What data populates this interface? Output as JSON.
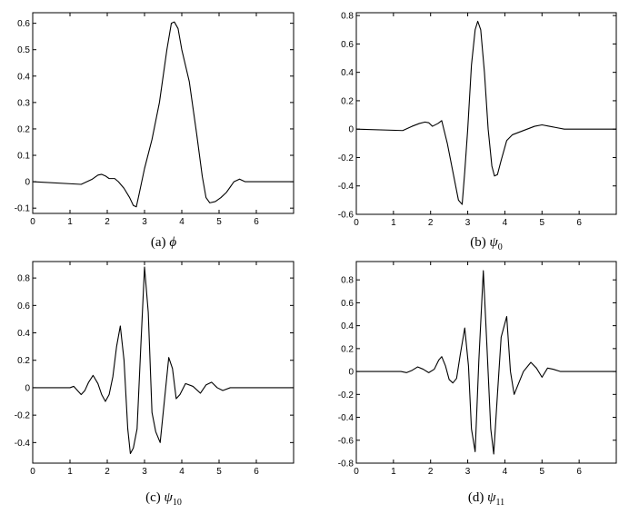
{
  "chart_data": [
    {
      "type": "line",
      "caption_prefix": "(a)",
      "caption_symbol": "ϕ",
      "caption_sub": "",
      "xlim": [
        0,
        7
      ],
      "ylim": [
        -0.12,
        0.64
      ],
      "xticks": [
        "0",
        "1",
        "2",
        "3",
        "4",
        "5",
        "6"
      ],
      "yticks": [
        "-0.1",
        "0",
        "0.1",
        "0.2",
        "0.3",
        "0.4",
        "0.5",
        "0.6"
      ],
      "ytick_values": [
        -0.1,
        0,
        0.1,
        0.2,
        0.3,
        0.4,
        0.5,
        0.6
      ],
      "x": [
        0,
        1.3,
        1.45,
        1.6,
        1.75,
        1.85,
        1.95,
        2.05,
        2.2,
        2.3,
        2.45,
        2.6,
        2.7,
        2.78,
        2.85,
        3.0,
        3.2,
        3.4,
        3.6,
        3.72,
        3.8,
        3.9,
        4.0,
        4.2,
        4.4,
        4.55,
        4.65,
        4.75,
        4.9,
        5.05,
        5.2,
        5.4,
        5.55,
        5.7,
        7
      ],
      "y": [
        0,
        -0.01,
        0.0,
        0.01,
        0.025,
        0.028,
        0.022,
        0.012,
        0.012,
        0.0,
        -0.025,
        -0.06,
        -0.09,
        -0.095,
        -0.05,
        0.05,
        0.16,
        0.3,
        0.5,
        0.6,
        0.605,
        0.58,
        0.5,
        0.38,
        0.18,
        0.02,
        -0.06,
        -0.08,
        -0.075,
        -0.06,
        -0.04,
        0.0,
        0.01,
        0.0,
        0
      ]
    },
    {
      "type": "line",
      "caption_prefix": "(b)",
      "caption_symbol": "ψ",
      "caption_sub": "0",
      "xlim": [
        0,
        7
      ],
      "ylim": [
        -0.6,
        0.82
      ],
      "xticks": [
        "0",
        "1",
        "2",
        "3",
        "4",
        "5",
        "6"
      ],
      "yticks": [
        "-0.6",
        "-0.4",
        "-0.2",
        "0",
        "0.2",
        "0.4",
        "0.6",
        "0.8"
      ],
      "ytick_values": [
        -0.6,
        -0.4,
        -0.2,
        0,
        0.2,
        0.4,
        0.6,
        0.8
      ],
      "x": [
        0,
        1.25,
        1.5,
        1.7,
        1.85,
        1.95,
        2.05,
        2.2,
        2.3,
        2.45,
        2.6,
        2.75,
        2.85,
        2.92,
        3.0,
        3.1,
        3.2,
        3.27,
        3.35,
        3.45,
        3.55,
        3.65,
        3.72,
        3.8,
        3.9,
        4.05,
        4.2,
        4.4,
        4.6,
        4.8,
        5.0,
        5.2,
        5.4,
        5.6,
        7
      ],
      "y": [
        0,
        -0.01,
        0.02,
        0.04,
        0.05,
        0.045,
        0.02,
        0.04,
        0.06,
        -0.1,
        -0.3,
        -0.5,
        -0.53,
        -0.3,
        0.0,
        0.45,
        0.7,
        0.76,
        0.7,
        0.4,
        0.0,
        -0.26,
        -0.33,
        -0.32,
        -0.22,
        -0.08,
        -0.04,
        -0.02,
        0.0,
        0.02,
        0.03,
        0.02,
        0.01,
        0.0,
        0
      ]
    },
    {
      "type": "line",
      "caption_prefix": "(c)",
      "caption_symbol": "ψ",
      "caption_sub": "10",
      "xlim": [
        0,
        7
      ],
      "ylim": [
        -0.55,
        0.92
      ],
      "xticks": [
        "0",
        "1",
        "2",
        "3",
        "4",
        "5",
        "6"
      ],
      "yticks": [
        "-0.4",
        "-0.2",
        "0",
        "0.2",
        "0.4",
        "0.6",
        "0.8"
      ],
      "ytick_values": [
        -0.4,
        -0.2,
        0,
        0.2,
        0.4,
        0.6,
        0.8
      ],
      "x": [
        0,
        0.8,
        1.0,
        1.1,
        1.2,
        1.3,
        1.4,
        1.5,
        1.62,
        1.75,
        1.85,
        1.95,
        2.05,
        2.15,
        2.25,
        2.35,
        2.45,
        2.55,
        2.62,
        2.7,
        2.8,
        2.9,
        3.0,
        3.1,
        3.2,
        3.3,
        3.42,
        3.55,
        3.65,
        3.75,
        3.85,
        3.95,
        4.1,
        4.3,
        4.5,
        4.65,
        4.8,
        4.95,
        5.1,
        5.3,
        7
      ],
      "y": [
        0,
        0.0,
        0.0,
        0.01,
        -0.02,
        -0.05,
        -0.02,
        0.04,
        0.09,
        0.03,
        -0.05,
        -0.1,
        -0.05,
        0.08,
        0.3,
        0.45,
        0.2,
        -0.3,
        -0.48,
        -0.44,
        -0.3,
        0.3,
        0.88,
        0.55,
        -0.18,
        -0.32,
        -0.4,
        -0.05,
        0.22,
        0.14,
        -0.08,
        -0.05,
        0.03,
        0.01,
        -0.04,
        0.02,
        0.04,
        0.0,
        -0.02,
        0.0,
        0
      ]
    },
    {
      "type": "line",
      "caption_prefix": "(d)",
      "caption_symbol": "ψ",
      "caption_sub": "11",
      "xlim": [
        0,
        7
      ],
      "ylim": [
        -0.8,
        0.96
      ],
      "xticks": [
        "0",
        "1",
        "2",
        "3",
        "4",
        "5",
        "6"
      ],
      "yticks": [
        "-0.8",
        "-0.6",
        "-0.4",
        "-0.2",
        "0",
        "0.2",
        "0.4",
        "0.6",
        "0.8"
      ],
      "ytick_values": [
        -0.8,
        -0.6,
        -0.4,
        -0.2,
        0,
        0.2,
        0.4,
        0.6,
        0.8
      ],
      "x": [
        0,
        1.2,
        1.35,
        1.5,
        1.65,
        1.8,
        1.95,
        2.1,
        2.22,
        2.3,
        2.4,
        2.5,
        2.6,
        2.7,
        2.8,
        2.92,
        3.02,
        3.1,
        3.2,
        3.3,
        3.42,
        3.52,
        3.62,
        3.7,
        3.8,
        3.9,
        4.05,
        4.15,
        4.25,
        4.35,
        4.5,
        4.7,
        4.85,
        5.0,
        5.15,
        5.3,
        5.5,
        5.7,
        7
      ],
      "y": [
        0,
        0.0,
        -0.01,
        0.01,
        0.04,
        0.02,
        -0.01,
        0.02,
        0.1,
        0.13,
        0.05,
        -0.07,
        -0.1,
        -0.06,
        0.15,
        0.38,
        0.05,
        -0.5,
        -0.7,
        0.1,
        0.88,
        0.2,
        -0.5,
        -0.72,
        -0.2,
        0.3,
        0.48,
        0.0,
        -0.2,
        -0.12,
        0.0,
        0.08,
        0.03,
        -0.05,
        0.03,
        0.02,
        0.0,
        0.0,
        0
      ]
    }
  ]
}
